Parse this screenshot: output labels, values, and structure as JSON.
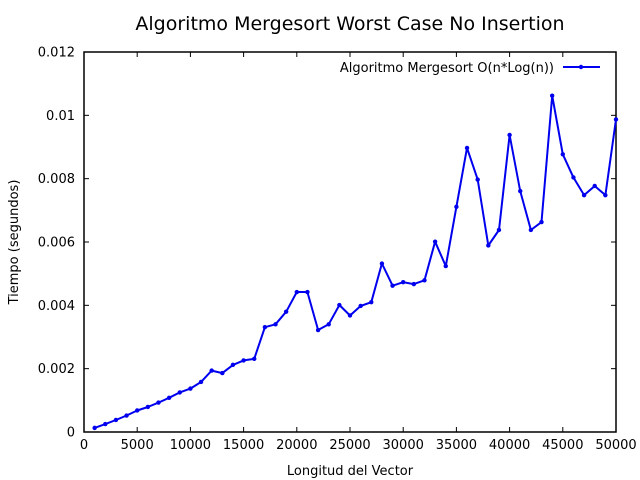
{
  "chart_data": {
    "type": "line",
    "title": "Algoritmo Mergesort Worst Case No Insertion",
    "xlabel": "Longitud del Vector",
    "ylabel": "Tiempo (segundos)",
    "xlim": [
      0,
      50000
    ],
    "ylim": [
      0,
      0.012
    ],
    "xticks": [
      "0",
      "5000",
      "10000",
      "15000",
      "20000",
      "25000",
      "30000",
      "35000",
      "40000",
      "45000",
      "50000"
    ],
    "yticks": [
      "0",
      "0.002",
      "0.004",
      "0.006",
      "0.008",
      "0.01",
      "0.012"
    ],
    "grid": false,
    "legend_position": "top-right",
    "series_color": "#0000ee",
    "series": [
      {
        "name": "Algoritmo Mergesort O(n*Log(n))",
        "x": [
          1000,
          2000,
          3000,
          4000,
          5000,
          6000,
          7000,
          8000,
          9000,
          10000,
          11000,
          12000,
          13000,
          14000,
          15000,
          16000,
          17000,
          18000,
          19000,
          20000,
          21000,
          22000,
          23000,
          24000,
          25000,
          26000,
          27000,
          28000,
          29000,
          30000,
          31000,
          32000,
          33000,
          34000,
          35000,
          36000,
          37000,
          38000,
          39000,
          40000,
          41000,
          42000,
          43000,
          44000,
          45000,
          46000,
          47000,
          48000,
          49000,
          50000
        ],
        "values": [
          0.00013,
          0.00025,
          0.00038,
          0.00052,
          0.00068,
          0.00079,
          0.00093,
          0.00108,
          0.00125,
          0.00137,
          0.00158,
          0.00194,
          0.00186,
          0.00212,
          0.00226,
          0.00231,
          0.00331,
          0.0034,
          0.0038,
          0.00442,
          0.00442,
          0.00322,
          0.0034,
          0.00401,
          0.00368,
          0.00398,
          0.0041,
          0.00532,
          0.00462,
          0.00473,
          0.00467,
          0.00479,
          0.00601,
          0.00524,
          0.00711,
          0.00897,
          0.00797,
          0.00589,
          0.00638,
          0.00938,
          0.00761,
          0.00638,
          0.00663,
          0.01062,
          0.00877,
          0.00804,
          0.00748,
          0.00777,
          0.00748,
          0.00987
        ]
      }
    ]
  }
}
